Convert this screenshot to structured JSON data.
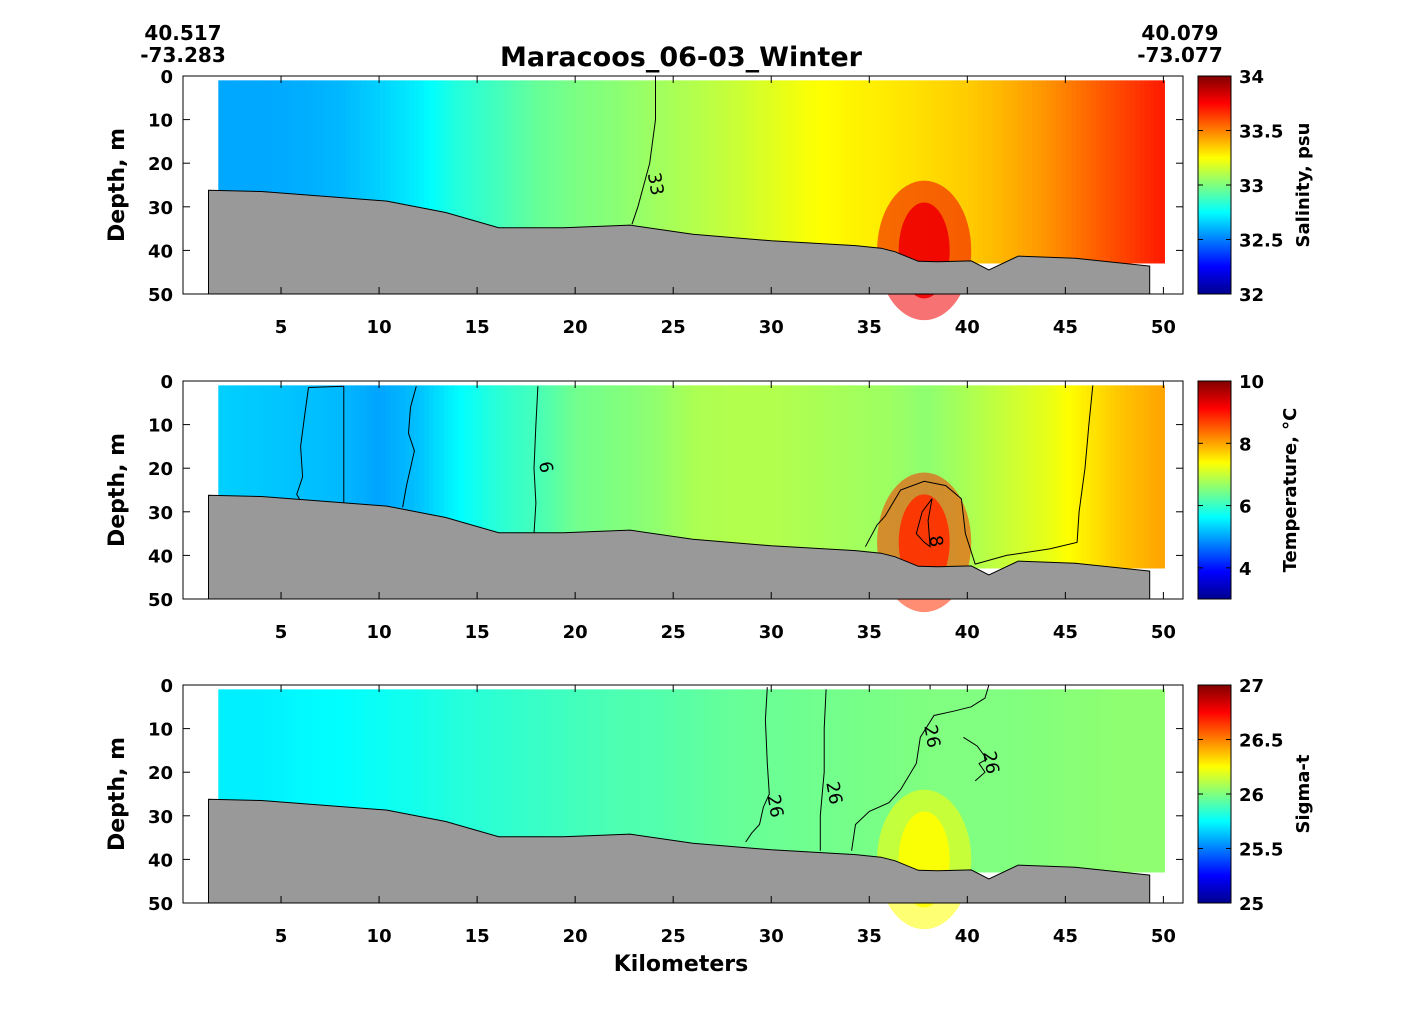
{
  "title": "Maracoos_06-03_Winter",
  "start_station": {
    "lat": "40.517",
    "lon": "-73.283"
  },
  "end_station": {
    "lat": "40.079",
    "lon": "-73.077"
  },
  "chart_data": [
    {
      "type": "heatmap",
      "name": "salinity",
      "ylabel": "Depth, m",
      "xlabel": "",
      "colorbar_label": "Salinity, psu",
      "xlim": [
        0,
        51
      ],
      "ylim": [
        50,
        0
      ],
      "xticks": [
        5,
        10,
        15,
        20,
        25,
        30,
        35,
        40,
        45,
        50
      ],
      "yticks": [
        0,
        10,
        20,
        30,
        40,
        50
      ],
      "clim": [
        32,
        34
      ],
      "cticks": [
        "32",
        "32.5",
        "33",
        "33.5",
        "34"
      ],
      "colormap": "jet",
      "surface_profile": {
        "x": [
          2,
          4,
          6,
          8,
          10,
          12,
          14,
          16,
          18,
          20,
          22,
          24,
          26,
          28,
          30,
          32,
          34,
          36,
          38,
          40,
          42,
          44,
          46,
          48,
          50
        ],
        "values": [
          32.58,
          32.58,
          32.59,
          32.61,
          32.66,
          32.72,
          32.82,
          32.88,
          32.95,
          32.99,
          33.02,
          33.06,
          33.1,
          33.14,
          33.19,
          33.24,
          33.27,
          33.29,
          33.32,
          33.35,
          33.4,
          33.46,
          33.54,
          33.62,
          33.7
        ]
      },
      "anomaly": {
        "x": 37.8,
        "depth": 36,
        "value": 33.78
      },
      "contours": [
        {
          "label": "33",
          "x": [
            24.1,
            24.1,
            23.8,
            23.5,
            23.2,
            22.9
          ],
          "depth": [
            0,
            10,
            20,
            25,
            30,
            34
          ]
        }
      ]
    },
    {
      "type": "heatmap",
      "name": "temperature",
      "ylabel": "Depth, m",
      "xlabel": "",
      "colorbar_label": "Temperature, °C",
      "xlim": [
        0,
        51
      ],
      "ylim": [
        50,
        0
      ],
      "xticks": [
        5,
        10,
        15,
        20,
        25,
        30,
        35,
        40,
        45,
        50
      ],
      "yticks": [
        0,
        10,
        20,
        30,
        40,
        50
      ],
      "clim": [
        3,
        10
      ],
      "cticks": [
        "4",
        "6",
        "8",
        "10"
      ],
      "colormap": "jet",
      "surface_profile": {
        "x": [
          2,
          4,
          6,
          8,
          10,
          12,
          14,
          16,
          18,
          20,
          22,
          24,
          26,
          28,
          30,
          32,
          34,
          36,
          38,
          40,
          42,
          44,
          46,
          48,
          50
        ],
        "values": [
          5.3,
          5.25,
          5.2,
          5.15,
          5.0,
          5.2,
          5.6,
          5.9,
          6.1,
          6.4,
          6.5,
          6.6,
          6.8,
          6.85,
          6.85,
          6.8,
          6.75,
          6.7,
          6.6,
          6.8,
          7.0,
          7.2,
          7.5,
          7.8,
          8.0
        ]
      },
      "anomaly": {
        "x": 37.8,
        "depth": 33,
        "value": 8.8
      },
      "contours": [
        {
          "label": "",
          "x": [
            6.4,
            6.2,
            6.0,
            6.1,
            5.8,
            6.0
          ],
          "depth": [
            1.5,
            8,
            15,
            22,
            26,
            27.5
          ]
        },
        {
          "label": "",
          "x": [
            6.4,
            8.2
          ],
          "depth": [
            1.5,
            1.2
          ]
        },
        {
          "label": "",
          "x": [
            8.2,
            8.2
          ],
          "depth": [
            1.2,
            28
          ]
        },
        {
          "label": "",
          "x": [
            11.9,
            11.6,
            11.5,
            11.8,
            11.4,
            11.2
          ],
          "depth": [
            1.2,
            6,
            12,
            16,
            24,
            29
          ]
        },
        {
          "label": "6",
          "x": [
            18.1,
            18.0,
            17.9,
            18.0,
            17.9
          ],
          "depth": [
            1.2,
            10,
            20,
            28,
            35
          ]
        },
        {
          "label": "8",
          "x": [
            38.2,
            37.7,
            37.4,
            37.8,
            38.1,
            38.0,
            38.2
          ],
          "depth": [
            27,
            30,
            35,
            37,
            38,
            32,
            27
          ]
        },
        {
          "label": "",
          "x": [
            34.8,
            35.4,
            35.8,
            36.6,
            37.8,
            38.9,
            39.7,
            39.9,
            40.4,
            42,
            44.2,
            45.6,
            45.7,
            46,
            46.2,
            46.4
          ],
          "depth": [
            38,
            33,
            31,
            25,
            23,
            24,
            27,
            35,
            42,
            40,
            38.5,
            37,
            30,
            20,
            10,
            1
          ]
        }
      ]
    },
    {
      "type": "heatmap",
      "name": "sigma-t",
      "ylabel": "Depth, m",
      "xlabel": "Kilometers",
      "colorbar_label": "Sigma-t",
      "xlim": [
        0,
        51
      ],
      "ylim": [
        50,
        0
      ],
      "xticks": [
        5,
        10,
        15,
        20,
        25,
        30,
        35,
        40,
        45,
        50
      ],
      "yticks": [
        0,
        10,
        20,
        30,
        40,
        50
      ],
      "clim": [
        25,
        27
      ],
      "cticks": [
        "25",
        "25.5",
        "26",
        "26.5",
        "27"
      ],
      "colormap": "jet",
      "surface_profile": {
        "x": [
          2,
          4,
          6,
          8,
          10,
          12,
          14,
          16,
          18,
          20,
          22,
          24,
          26,
          28,
          30,
          32,
          34,
          36,
          38,
          40,
          42,
          44,
          46,
          48,
          50
        ],
        "values": [
          25.72,
          25.72,
          25.74,
          25.75,
          25.77,
          25.79,
          25.82,
          25.84,
          25.86,
          25.88,
          25.9,
          25.91,
          25.93,
          25.95,
          25.96,
          25.97,
          25.98,
          25.99,
          26.0,
          26.0,
          26.0,
          26.01,
          26.02,
          26.03,
          26.03
        ]
      },
      "anomaly": {
        "x": 37.8,
        "depth": 36,
        "value": 26.25
      },
      "contours": [
        {
          "label": "26",
          "x": [
            29.8,
            29.7,
            29.8,
            29.9,
            29.6,
            29.4,
            29.0,
            28.7
          ],
          "depth": [
            0.5,
            8,
            18,
            25,
            28,
            32,
            34,
            36
          ]
        },
        {
          "label": "26",
          "x": [
            32.8,
            32.7,
            32.7,
            32.6,
            32.5,
            32.5
          ],
          "depth": [
            1,
            10,
            20,
            25,
            30,
            38
          ]
        },
        {
          "label": "26",
          "x": [
            34.1,
            34.3,
            35.0,
            36.0,
            36.6,
            37.4,
            37.6,
            38.3,
            39.3,
            40.2,
            40.9,
            41.1
          ],
          "depth": [
            38,
            32,
            29,
            27,
            24,
            18,
            12,
            7,
            6,
            5,
            3,
            0
          ]
        },
        {
          "label": "26",
          "x": [
            39.8,
            40.5,
            41.0,
            40.6,
            40.9,
            40.4
          ],
          "depth": [
            12,
            14,
            17,
            18,
            20,
            22
          ]
        },
        {
          "label": "",
          "x": [
            38.1,
            38.1
          ],
          "depth": [
            0,
            1
          ]
        }
      ]
    }
  ],
  "bathymetry": {
    "x": [
      1.3,
      4.0,
      10.4,
      13.4,
      16.1,
      18.0,
      19.4,
      22.8,
      26.0,
      30.0,
      34.3,
      35.6,
      36.3,
      37.5,
      38.5,
      40.2,
      41.1,
      42.6,
      45.5,
      49.3
    ],
    "depth": [
      26.2,
      26.5,
      28.7,
      31.3,
      34.8,
      34.8,
      34.8,
      34.2,
      36.3,
      37.8,
      38.9,
      39.5,
      40.3,
      42.5,
      42.6,
      42.4,
      44.5,
      41.3,
      41.8,
      43.6
    ]
  },
  "data_extent": {
    "x_start": 1.8,
    "x_end": 50.0,
    "top_depth": 1.0,
    "bottom_depth": 43
  }
}
